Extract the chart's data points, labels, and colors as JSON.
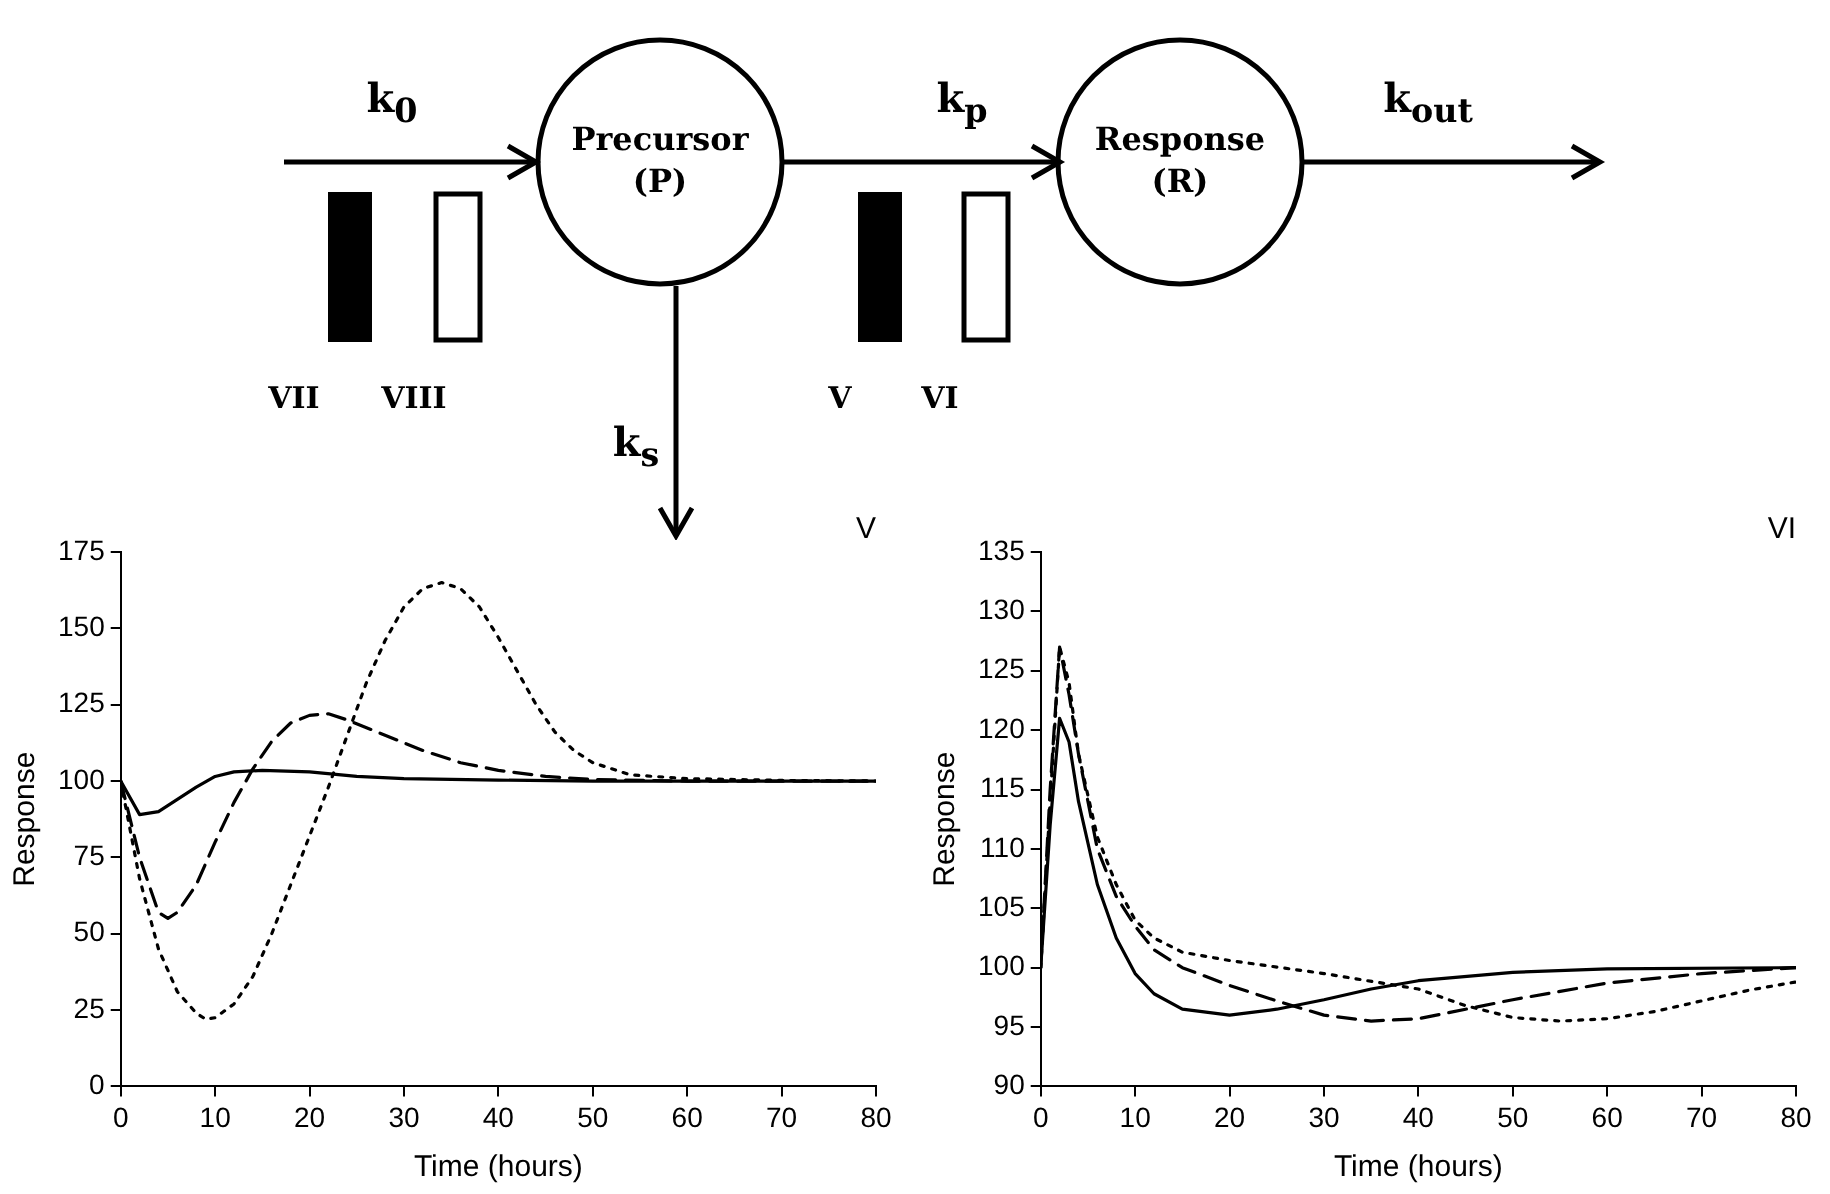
{
  "chart_data": [
    {
      "type": "other",
      "annotations": [
        "k$_{0}$",
        "Precursor (P)",
        "k$_{p}$",
        "Response (R)",
        "k$_{out}$",
        "VII",
        "VIII",
        "V",
        "VI",
        "k$_{s}$"
      ]
    },
    {
      "type": "line",
      "title": "V",
      "xlabel": "Time (hours)",
      "ylabel": "Response",
      "xlim": [
        0,
        80
      ],
      "xticks": [
        0,
        10,
        20,
        30,
        40,
        50,
        60,
        70,
        80
      ],
      "ylim": [
        0,
        175
      ],
      "yticks": [
        0,
        25,
        50,
        75,
        100,
        125,
        150,
        175
      ],
      "grid": false,
      "legend": false,
      "marker": "none",
      "series": [
        {
          "color": "#000000",
          "line_style": "solid",
          "x": [
            0,
            2,
            4,
            6,
            8,
            10,
            12,
            15,
            20,
            25,
            30,
            40,
            50,
            80
          ],
          "values": [
            100,
            89,
            90,
            94,
            98,
            101.5,
            103,
            103.5,
            103,
            101.5,
            100.8,
            100.3,
            100,
            100
          ]
        },
        {
          "color": "#000000",
          "line_style": "dashed",
          "x": [
            0,
            2,
            4,
            5,
            6,
            8,
            10,
            12,
            14,
            16,
            18,
            20,
            22,
            24,
            28,
            32,
            36,
            40,
            45,
            50,
            60,
            80
          ],
          "values": [
            100,
            75,
            57,
            55,
            57,
            66,
            80,
            93,
            104,
            113,
            119,
            121.5,
            122,
            120,
            115,
            110,
            106,
            103.5,
            101.5,
            100.5,
            100,
            100
          ]
        },
        {
          "color": "#000000",
          "line_style": "dotted",
          "x": [
            0,
            2,
            4,
            6,
            8,
            9,
            10,
            12,
            14,
            16,
            18,
            20,
            22,
            24,
            26,
            28,
            30,
            32,
            34,
            36,
            38,
            40,
            42,
            44,
            46,
            48,
            50,
            54,
            60,
            70,
            80
          ],
          "values": [
            100,
            68,
            45,
            31,
            24,
            22,
            22.5,
            27,
            36,
            50,
            66,
            82,
            98,
            115,
            132,
            146,
            157,
            163,
            165,
            163,
            157,
            147,
            136,
            125,
            116,
            110,
            106,
            102,
            100.8,
            100.2,
            100
          ]
        }
      ]
    },
    {
      "type": "line",
      "title": "VI",
      "xlabel": "Time (hours)",
      "ylabel": "Response",
      "xlim": [
        0,
        80
      ],
      "xticks": [
        0,
        10,
        20,
        30,
        40,
        50,
        60,
        70,
        80
      ],
      "ylim": [
        90,
        135
      ],
      "yticks": [
        90,
        95,
        100,
        105,
        110,
        115,
        120,
        125,
        130,
        135
      ],
      "grid": false,
      "legend": false,
      "marker": "none",
      "series": [
        {
          "color": "#000000",
          "line_style": "solid",
          "x": [
            0,
            1,
            2,
            3,
            4,
            6,
            8,
            10,
            12,
            15,
            20,
            25,
            30,
            35,
            40,
            50,
            60,
            80
          ],
          "values": [
            100,
            112,
            121,
            119,
            114,
            107,
            102.5,
            99.5,
            97.8,
            96.5,
            96,
            96.5,
            97.3,
            98.2,
            98.9,
            99.6,
            99.9,
            100
          ]
        },
        {
          "color": "#000000",
          "line_style": "dashed",
          "x": [
            0,
            1,
            2,
            3,
            4,
            6,
            8,
            10,
            12,
            15,
            20,
            25,
            30,
            35,
            40,
            45,
            50,
            60,
            70,
            80
          ],
          "values": [
            100,
            115,
            127,
            123,
            118,
            110,
            106,
            103.5,
            101.5,
            100,
            98.5,
            97.2,
            96,
            95.5,
            95.7,
            96.5,
            97.3,
            98.7,
            99.5,
            100
          ]
        },
        {
          "color": "#000000",
          "line_style": "dotted",
          "x": [
            0,
            1,
            2,
            3,
            4,
            6,
            8,
            10,
            12,
            15,
            20,
            30,
            40,
            45,
            50,
            55,
            60,
            65,
            70,
            75,
            80
          ],
          "values": [
            100,
            114,
            127,
            124,
            118,
            111,
            107,
            104,
            102.5,
            101.3,
            100.6,
            99.5,
            98.2,
            96.8,
            95.8,
            95.5,
            95.7,
            96.3,
            97.2,
            98.1,
            98.8
          ]
        }
      ]
    }
  ]
}
